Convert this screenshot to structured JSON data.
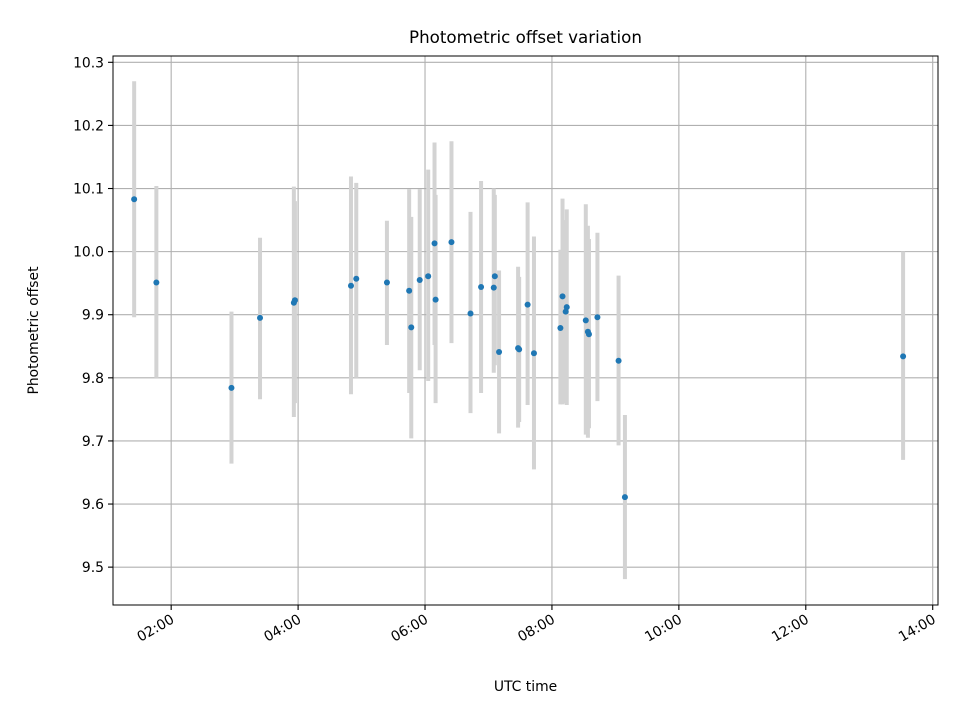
{
  "chart_data": {
    "type": "scatter",
    "title": "Photometric offset variation",
    "xlabel": "UTC time",
    "ylabel": "Photometric offset",
    "x_unit": "UTC time (HH:MM)",
    "xlim": [
      "01:05",
      "14:05"
    ],
    "ylim": [
      9.44,
      10.31
    ],
    "x_ticks": [
      "02:00",
      "04:00",
      "06:00",
      "08:00",
      "10:00",
      "12:00",
      "14:00"
    ],
    "y_ticks": [
      "9.5",
      "9.6",
      "9.7",
      "9.8",
      "9.9",
      "10.0",
      "10.1",
      "10.2",
      "10.3"
    ],
    "grid": true,
    "colors": {
      "points": "#1f77b4",
      "errorbars": "#d3d3d3",
      "grid": "#b0b0b0"
    },
    "series": [
      {
        "points": [
          {
            "x": "01:25",
            "y": 10.083,
            "ylow": 9.896,
            "yhigh": 10.27
          },
          {
            "x": "01:46",
            "y": 9.951,
            "ylow": 9.8,
            "yhigh": 10.104
          },
          {
            "x": "02:57",
            "y": 9.784,
            "ylow": 9.664,
            "yhigh": 9.905
          },
          {
            "x": "03:24",
            "y": 9.895,
            "ylow": 9.766,
            "yhigh": 10.022
          },
          {
            "x": "03:56",
            "y": 9.919,
            "ylow": 9.738,
            "yhigh": 10.103
          },
          {
            "x": "03:57",
            "y": 9.923,
            "ylow": 9.76,
            "yhigh": 10.08
          },
          {
            "x": "04:50",
            "y": 9.946,
            "ylow": 9.774,
            "yhigh": 10.119
          },
          {
            "x": "04:55",
            "y": 9.957,
            "ylow": 9.8,
            "yhigh": 10.109
          },
          {
            "x": "05:24",
            "y": 9.951,
            "ylow": 9.852,
            "yhigh": 10.049
          },
          {
            "x": "05:45",
            "y": 9.938,
            "ylow": 9.776,
            "yhigh": 10.099
          },
          {
            "x": "05:47",
            "y": 9.88,
            "ylow": 9.704,
            "yhigh": 10.055
          },
          {
            "x": "05:55",
            "y": 9.955,
            "ylow": 9.812,
            "yhigh": 10.099
          },
          {
            "x": "06:03",
            "y": 9.961,
            "ylow": 9.795,
            "yhigh": 10.13
          },
          {
            "x": "06:09",
            "y": 10.013,
            "ylow": 9.852,
            "yhigh": 10.173
          },
          {
            "x": "06:10",
            "y": 9.924,
            "ylow": 9.76,
            "yhigh": 10.09
          },
          {
            "x": "06:25",
            "y": 10.015,
            "ylow": 9.855,
            "yhigh": 10.175
          },
          {
            "x": "06:43",
            "y": 9.902,
            "ylow": 9.744,
            "yhigh": 10.063
          },
          {
            "x": "06:53",
            "y": 9.944,
            "ylow": 9.776,
            "yhigh": 10.112
          },
          {
            "x": "07:05",
            "y": 9.943,
            "ylow": 9.808,
            "yhigh": 10.1
          },
          {
            "x": "07:06",
            "y": 9.961,
            "ylow": 9.82,
            "yhigh": 10.09
          },
          {
            "x": "07:10",
            "y": 9.841,
            "ylow": 9.712,
            "yhigh": 9.97
          },
          {
            "x": "07:28",
            "y": 9.847,
            "ylow": 9.721,
            "yhigh": 9.976
          },
          {
            "x": "07:29",
            "y": 9.845,
            "ylow": 9.73,
            "yhigh": 9.96
          },
          {
            "x": "07:37",
            "y": 9.916,
            "ylow": 9.757,
            "yhigh": 10.078
          },
          {
            "x": "07:43",
            "y": 9.839,
            "ylow": 9.655,
            "yhigh": 10.024
          },
          {
            "x": "08:08",
            "y": 9.879,
            "ylow": 9.758,
            "yhigh": 10.003
          },
          {
            "x": "08:10",
            "y": 9.929,
            "ylow": 9.758,
            "yhigh": 10.084
          },
          {
            "x": "08:13",
            "y": 9.905,
            "ylow": 9.76,
            "yhigh": 10.05
          },
          {
            "x": "08:14",
            "y": 9.912,
            "ylow": 9.757,
            "yhigh": 10.067
          },
          {
            "x": "08:32",
            "y": 9.891,
            "ylow": 9.71,
            "yhigh": 10.075
          },
          {
            "x": "08:34",
            "y": 9.873,
            "ylow": 9.705,
            "yhigh": 10.041
          },
          {
            "x": "08:35",
            "y": 9.869,
            "ylow": 9.72,
            "yhigh": 10.02
          },
          {
            "x": "08:43",
            "y": 9.896,
            "ylow": 9.763,
            "yhigh": 10.03
          },
          {
            "x": "09:03",
            "y": 9.827,
            "ylow": 9.693,
            "yhigh": 9.962
          },
          {
            "x": "09:09",
            "y": 9.611,
            "ylow": 9.481,
            "yhigh": 9.741
          },
          {
            "x": "13:32",
            "y": 9.834,
            "ylow": 9.67,
            "yhigh": 10.0
          }
        ]
      }
    ]
  }
}
